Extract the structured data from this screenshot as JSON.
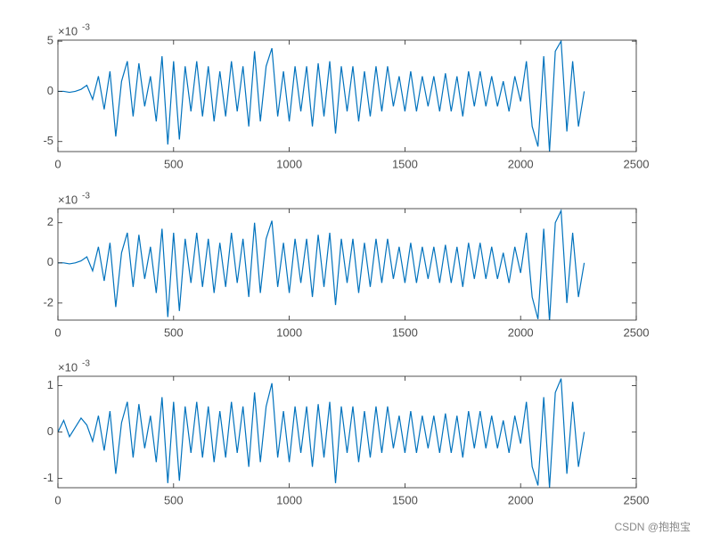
{
  "chart_data": [
    {
      "type": "line",
      "y_multiplier": "×10",
      "y_exponent": "-3",
      "xlim": [
        0,
        2500
      ],
      "xticks": [
        0,
        500,
        1000,
        1500,
        2000,
        2500
      ],
      "ylim": [
        -6,
        5.1
      ],
      "yticks": [
        -5,
        0,
        5
      ],
      "x": [
        0,
        25,
        50,
        75,
        100,
        125,
        150,
        175,
        200,
        225,
        250,
        275,
        300,
        325,
        350,
        375,
        400,
        425,
        450,
        475,
        500,
        525,
        550,
        575,
        600,
        625,
        650,
        675,
        700,
        725,
        750,
        775,
        800,
        825,
        850,
        875,
        900,
        925,
        950,
        975,
        1000,
        1025,
        1050,
        1075,
        1100,
        1125,
        1150,
        1175,
        1200,
        1225,
        1250,
        1275,
        1300,
        1325,
        1350,
        1375,
        1400,
        1425,
        1450,
        1475,
        1500,
        1525,
        1550,
        1575,
        1600,
        1625,
        1650,
        1675,
        1700,
        1725,
        1750,
        1775,
        1800,
        1825,
        1850,
        1875,
        1900,
        1925,
        1950,
        1975,
        2000,
        2025,
        2050,
        2075,
        2100,
        2125,
        2150,
        2175,
        2200,
        2225,
        2250,
        2275
      ],
      "series": [
        {
          "color": "#0072bd",
          "values": [
            0,
            0,
            -0.1,
            0,
            0.2,
            0.6,
            -0.8,
            1.5,
            -1.8,
            2,
            -4.5,
            1,
            3,
            -2.5,
            2.8,
            -1.5,
            1.5,
            -3,
            3.5,
            -5.3,
            3,
            -4.8,
            2.5,
            -2,
            3,
            -2.5,
            2.5,
            -3,
            2,
            -2.5,
            3,
            -2,
            2.5,
            -3.5,
            4,
            -3,
            2.5,
            4.3,
            -2.5,
            2,
            -3,
            2.5,
            -2,
            2.5,
            -3.5,
            2.8,
            -2.5,
            3,
            -4.2,
            2.5,
            -2,
            2.5,
            -3,
            2,
            -2.5,
            2.5,
            -2,
            2.5,
            -1.5,
            1.5,
            -2,
            2,
            -2,
            1.5,
            -1.5,
            1.5,
            -2,
            1.8,
            -2,
            1.5,
            -2.5,
            2,
            -1.5,
            2,
            -1.5,
            1.5,
            -1.5,
            1,
            -2,
            1.5,
            -1,
            3,
            -3.5,
            -5.5,
            3.5,
            -6,
            4,
            5,
            -4,
            3,
            -3.5,
            0
          ]
        }
      ]
    },
    {
      "type": "line",
      "y_multiplier": "×10",
      "y_exponent": "-3",
      "xlim": [
        0,
        2500
      ],
      "xticks": [
        0,
        500,
        1000,
        1500,
        2000,
        2500
      ],
      "ylim": [
        -2.85,
        2.7
      ],
      "yticks": [
        -2,
        0,
        2
      ],
      "x": [
        0,
        25,
        50,
        75,
        100,
        125,
        150,
        175,
        200,
        225,
        250,
        275,
        300,
        325,
        350,
        375,
        400,
        425,
        450,
        475,
        500,
        525,
        550,
        575,
        600,
        625,
        650,
        675,
        700,
        725,
        750,
        775,
        800,
        825,
        850,
        875,
        900,
        925,
        950,
        975,
        1000,
        1025,
        1050,
        1075,
        1100,
        1125,
        1150,
        1175,
        1200,
        1225,
        1250,
        1275,
        1300,
        1325,
        1350,
        1375,
        1400,
        1425,
        1450,
        1475,
        1500,
        1525,
        1550,
        1575,
        1600,
        1625,
        1650,
        1675,
        1700,
        1725,
        1750,
        1775,
        1800,
        1825,
        1850,
        1875,
        1900,
        1925,
        1950,
        1975,
        2000,
        2025,
        2050,
        2075,
        2100,
        2125,
        2150,
        2175,
        2200,
        2225,
        2250,
        2275
      ],
      "series": [
        {
          "color": "#0072bd",
          "values": [
            0,
            0,
            -0.05,
            0,
            0.1,
            0.3,
            -0.4,
            0.8,
            -0.9,
            1,
            -2.2,
            0.5,
            1.5,
            -1.2,
            1.4,
            -0.8,
            0.8,
            -1.5,
            1.7,
            -2.7,
            1.5,
            -2.4,
            1.2,
            -1,
            1.5,
            -1.2,
            1.2,
            -1.5,
            1,
            -1.2,
            1.5,
            -1,
            1.2,
            -1.7,
            2,
            -1.5,
            1.2,
            2.1,
            -1.2,
            1,
            -1.5,
            1.2,
            -1,
            1.2,
            -1.7,
            1.4,
            -1.2,
            1.5,
            -2.1,
            1.2,
            -1,
            1.2,
            -1.5,
            1,
            -1.2,
            1.2,
            -1,
            1.2,
            -0.8,
            0.8,
            -1,
            1,
            -1,
            0.8,
            -0.8,
            0.8,
            -1,
            0.9,
            -1,
            0.8,
            -1.2,
            1,
            -0.8,
            1,
            -0.8,
            0.8,
            -0.8,
            0.5,
            -1,
            0.8,
            -0.5,
            1.5,
            -1.7,
            -2.8,
            1.7,
            -2.9,
            2,
            2.6,
            -2,
            1.5,
            -1.7,
            0
          ]
        }
      ]
    },
    {
      "type": "line",
      "y_multiplier": "×10",
      "y_exponent": "-3",
      "xlim": [
        0,
        2500
      ],
      "xticks": [
        0,
        500,
        1000,
        1500,
        2000,
        2500
      ],
      "ylim": [
        -1.2,
        1.2
      ],
      "yticks": [
        -1,
        0,
        1
      ],
      "x": [
        0,
        25,
        50,
        75,
        100,
        125,
        150,
        175,
        200,
        225,
        250,
        275,
        300,
        325,
        350,
        375,
        400,
        425,
        450,
        475,
        500,
        525,
        550,
        575,
        600,
        625,
        650,
        675,
        700,
        725,
        750,
        775,
        800,
        825,
        850,
        875,
        900,
        925,
        950,
        975,
        1000,
        1025,
        1050,
        1075,
        1100,
        1125,
        1150,
        1175,
        1200,
        1225,
        1250,
        1275,
        1300,
        1325,
        1350,
        1375,
        1400,
        1425,
        1450,
        1475,
        1500,
        1525,
        1550,
        1575,
        1600,
        1625,
        1650,
        1675,
        1700,
        1725,
        1750,
        1775,
        1800,
        1825,
        1850,
        1875,
        1900,
        1925,
        1950,
        1975,
        2000,
        2025,
        2050,
        2075,
        2100,
        2125,
        2150,
        2175,
        2200,
        2225,
        2250,
        2275
      ],
      "series": [
        {
          "color": "#0072bd",
          "values": [
            0,
            0.25,
            -0.1,
            0.1,
            0.3,
            0.15,
            -0.2,
            0.35,
            -0.4,
            0.45,
            -0.9,
            0.2,
            0.65,
            -0.55,
            0.6,
            -0.35,
            0.35,
            -0.65,
            0.75,
            -1.1,
            0.65,
            -1.05,
            0.55,
            -0.45,
            0.65,
            -0.55,
            0.55,
            -0.65,
            0.45,
            -0.55,
            0.65,
            -0.45,
            0.55,
            -0.75,
            0.85,
            -0.65,
            0.55,
            1.05,
            -0.55,
            0.45,
            -0.65,
            0.55,
            -0.45,
            0.55,
            -0.75,
            0.6,
            -0.55,
            0.65,
            -1.1,
            0.55,
            -0.45,
            0.55,
            -0.65,
            0.45,
            -0.55,
            0.55,
            -0.45,
            0.55,
            -0.35,
            0.35,
            -0.45,
            0.45,
            -0.45,
            0.35,
            -0.35,
            0.35,
            -0.45,
            0.4,
            -0.45,
            0.35,
            -0.55,
            0.45,
            -0.35,
            0.45,
            -0.35,
            0.35,
            -0.35,
            0.25,
            -0.45,
            0.35,
            -0.25,
            0.65,
            -0.75,
            -1.15,
            0.75,
            -1.2,
            0.85,
            1.15,
            -0.9,
            0.65,
            -0.75,
            0
          ]
        }
      ]
    }
  ],
  "watermark": "CSDN @抱抱宝"
}
